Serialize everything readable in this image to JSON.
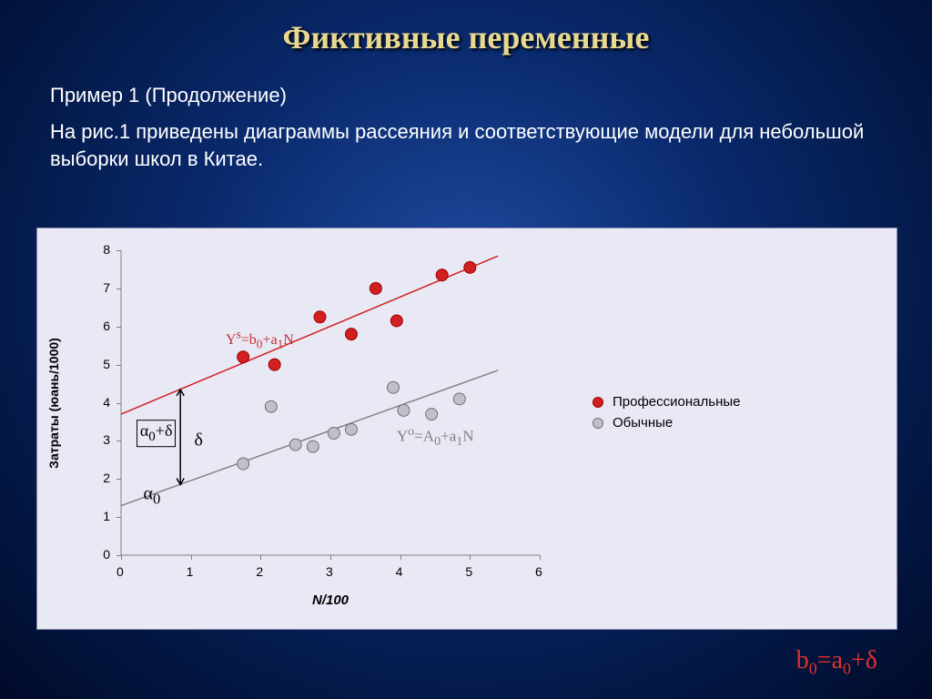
{
  "slide": {
    "title": "Фиктивные переменные",
    "subtitle": "Пример 1 (Продолжение)",
    "body": "На рис.1 приведены диаграммы рассеяния и соответствующие модели для небольшой выборки школ в Китае."
  },
  "colors": {
    "background_gradient_inner": "#1e4a9e",
    "background_gradient_outer": "#010b2a",
    "title_color": "#e8d890",
    "text_color": "#ffffff",
    "chart_bg": "#e9e9f5",
    "series1_fill": "#d02020",
    "series1_stroke": "#a00000",
    "series2_fill": "#c0c0c8",
    "series2_stroke": "#707078",
    "line1_color": "#d02020",
    "line2_color": "#808088",
    "axis_color": "#808080",
    "formula_color": "#e03030",
    "arrow_color": "#000000"
  },
  "chart": {
    "type": "scatter",
    "xlabel": "N/100",
    "ylabel": "Затраты (юань/1000)",
    "xlim": [
      0,
      6
    ],
    "ylim": [
      0,
      8
    ],
    "xtick_step": 1,
    "ytick_step": 1,
    "marker_radius": 6.5,
    "tick_fontsize": 14,
    "label_fontsize": 15,
    "series": [
      {
        "name": "Профессиональные",
        "fill": "#d02020",
        "stroke": "#a00000",
        "points": [
          {
            "x": 1.75,
            "y": 5.2
          },
          {
            "x": 2.2,
            "y": 5.0
          },
          {
            "x": 2.85,
            "y": 6.25
          },
          {
            "x": 3.3,
            "y": 5.8
          },
          {
            "x": 3.65,
            "y": 7.0
          },
          {
            "x": 3.95,
            "y": 6.15
          },
          {
            "x": 4.6,
            "y": 7.35
          },
          {
            "x": 5.0,
            "y": 7.55
          }
        ]
      },
      {
        "name": "Обычные",
        "fill": "#c0c0c8",
        "stroke": "#707078",
        "points": [
          {
            "x": 1.75,
            "y": 2.4
          },
          {
            "x": 2.15,
            "y": 3.9
          },
          {
            "x": 2.5,
            "y": 2.9
          },
          {
            "x": 2.75,
            "y": 2.85
          },
          {
            "x": 3.05,
            "y": 3.2
          },
          {
            "x": 3.3,
            "y": 3.3
          },
          {
            "x": 3.9,
            "y": 4.4
          },
          {
            "x": 4.05,
            "y": 3.8
          },
          {
            "x": 4.45,
            "y": 3.7
          },
          {
            "x": 4.85,
            "y": 4.1
          }
        ]
      }
    ],
    "lines": [
      {
        "color": "#d02020",
        "x1": 0,
        "y1": 3.7,
        "x2": 5.4,
        "y2": 7.85,
        "z": 1
      },
      {
        "color": "#808088",
        "x1": 0,
        "y1": 1.3,
        "x2": 5.4,
        "y2": 4.85,
        "z": 1
      }
    ],
    "annotations": {
      "eq_top": {
        "html": "Y<sup>s</sup>=b<sub>0</sub>+a<sub>1</sub>N",
        "x_data": 1.5,
        "y_data": 5.65,
        "color": "#c03030",
        "fontsize": 16
      },
      "eq_bot": {
        "html": "Y<sup>o</sup>=A<sub>0</sub>+a<sub>1</sub>N",
        "x_data": 3.95,
        "y_data": 3.1,
        "color": "#808080",
        "fontsize": 17
      },
      "alpha0_delta": {
        "html": "α<sub>0</sub>+δ",
        "x_data": 0.22,
        "y_data": 3.2,
        "fontsize": 18,
        "border": true
      },
      "delta": {
        "html": "δ",
        "x_data": 1.05,
        "y_data": 3.0,
        "fontsize": 20
      },
      "alpha0": {
        "html": "α<sub>0</sub>",
        "x_data": 0.32,
        "y_data": 1.55,
        "fontsize": 20
      }
    },
    "arrow": {
      "x_data": 0.85,
      "y1_data": 1.85,
      "y2_data": 4.35,
      "color": "#000000",
      "width": 1.5
    },
    "legend": {
      "items": [
        {
          "label": "Профессиональные",
          "fill": "#d02020",
          "stroke": "#a00000"
        },
        {
          "label": "Обычные",
          "fill": "#c0c0c8",
          "stroke": "#707078"
        }
      ]
    }
  },
  "formula_html": "b<sub>0</sub>=a<sub>0</sub>+δ"
}
